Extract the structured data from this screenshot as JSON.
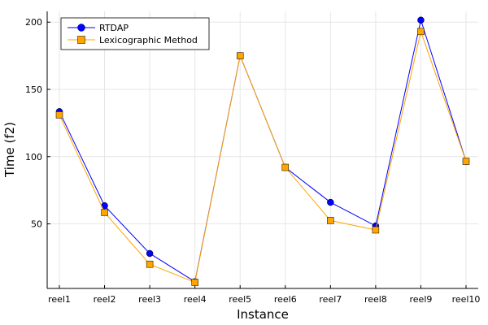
{
  "chart_data": {
    "type": "line",
    "title": "",
    "xlabel": "Instance",
    "ylabel": "Time (f2)",
    "categories": [
      "reel1",
      "reel2",
      "reel3",
      "reel4",
      "reel5",
      "reel6",
      "reel7",
      "reel8",
      "reel9",
      "reel10"
    ],
    "yticks": [
      50,
      100,
      150,
      200
    ],
    "ylim": [
      2,
      208
    ],
    "grid": true,
    "legend_position": "top-left",
    "series": [
      {
        "name": "RTDAP",
        "color": "#0000ff",
        "marker": "circle",
        "values": [
          133.5,
          63.5,
          28.0,
          7.0,
          175.0,
          92.0,
          66.0,
          48.5,
          201.5,
          96.5
        ]
      },
      {
        "name": "Lexicographic Method",
        "color": "#ffa500",
        "marker": "square",
        "values": [
          131.0,
          58.5,
          20.0,
          6.5,
          175.0,
          92.0,
          52.5,
          45.5,
          193.0,
          96.5
        ]
      }
    ]
  }
}
